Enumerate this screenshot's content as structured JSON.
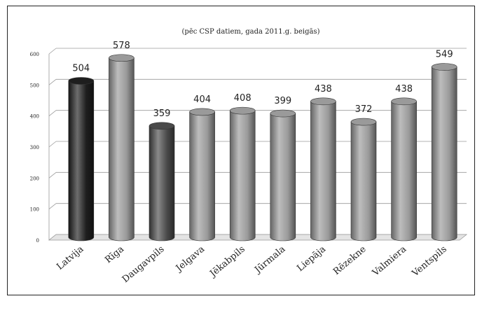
{
  "chart_data": {
    "type": "bar",
    "subtitle": "(pēc CSP datiem, gada 2011.g. beigās)",
    "categories": [
      "Latvija",
      "Rīga",
      "Daugavpils",
      "Jelgava",
      "Jēkabpils",
      "Jūrmala",
      "Liepāja",
      "Rēzekne",
      "Valmiera",
      "Ventspils"
    ],
    "values": [
      504,
      578,
      359,
      404,
      408,
      399,
      438,
      372,
      438,
      549
    ],
    "data_labels": [
      "504",
      "578",
      "359",
      "404",
      "408",
      "399",
      "438",
      "372",
      "438",
      "549"
    ],
    "bar_colors": [
      "#1e1e1e",
      "#9a9a9a",
      "#4a4a4a",
      "#9a9a9a",
      "#9a9a9a",
      "#9a9a9a",
      "#9a9a9a",
      "#9a9a9a",
      "#9a9a9a",
      "#9a9a9a"
    ],
    "yticks": [
      "0",
      "100",
      "200",
      "300",
      "400",
      "500",
      "600"
    ],
    "ylim": [
      0,
      600
    ],
    "grid": true,
    "style": "3d-cylinder"
  }
}
